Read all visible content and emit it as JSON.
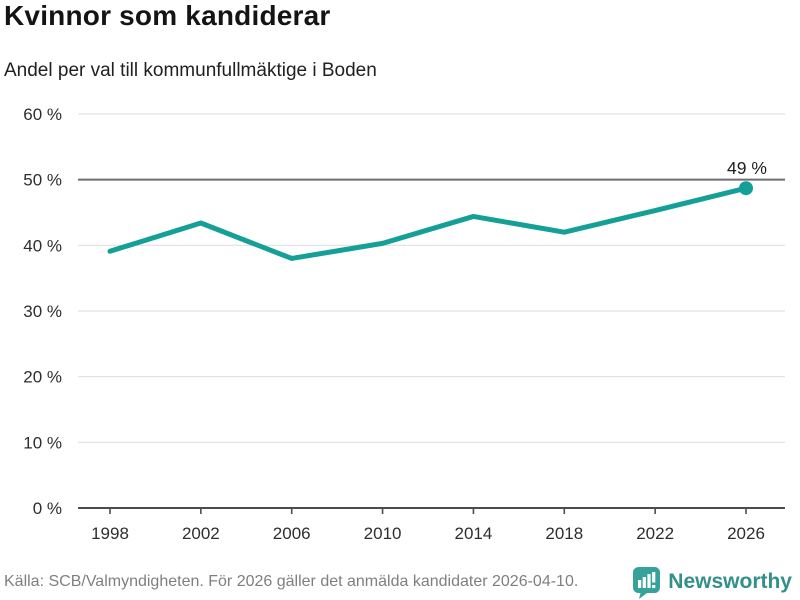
{
  "title": "Kvinnor som kandiderar",
  "subtitle": "Andel per val till kommunfullmäktige i Boden",
  "footer": {
    "source": "Källa: SCB/Valmyndigheten. För 2026 gäller det anmälda kandidater 2026-04-10.",
    "brand": "Newsworthy"
  },
  "colors": {
    "line": "#14a096",
    "marker": "#14a096",
    "grid": "#e1e1e1",
    "grid_emphasis": "#6e6e6e",
    "axis": "#4d4d4d",
    "tick_text": "#2e2e2e",
    "annotation": "#1f1f1f",
    "footer_text": "#7f7f7f",
    "brand_icon": "#35a39b",
    "brand_text": "#338f8a"
  },
  "chart_data": {
    "type": "line",
    "title": "Kvinnor som kandiderar",
    "subtitle": "Andel per val till kommunfullmäktige i Boden",
    "x": [
      "1998",
      "2002",
      "2006",
      "2010",
      "2014",
      "2018",
      "2022",
      "2026"
    ],
    "values": [
      39.1,
      43.4,
      38.0,
      40.3,
      44.4,
      42.0,
      45.3,
      48.7
    ],
    "end_label": "49 %",
    "xlabel": "",
    "ylabel": "",
    "ylim": [
      0,
      60
    ],
    "ytick_values": [
      0,
      10,
      20,
      30,
      40,
      50,
      60
    ],
    "ytick_labels": [
      "0 %",
      "10 %",
      "20 %",
      "30 %",
      "40 %",
      "50 %",
      "60 %"
    ],
    "emphasis_gridline": 50,
    "grid": true,
    "legend": false,
    "marker_on_last_point": true
  }
}
